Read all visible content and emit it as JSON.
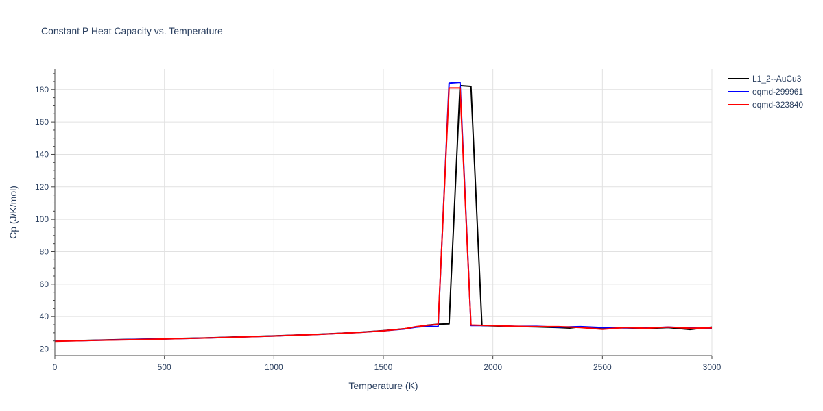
{
  "chart_data": {
    "type": "line",
    "title": "Constant P Heat Capacity vs. Temperature",
    "xlabel": "Temperature (K)",
    "ylabel": "Cp (J/K/mol)",
    "xlim": [
      0,
      3000
    ],
    "ylim": [
      16,
      193
    ],
    "xticks": [
      0,
      500,
      1000,
      1500,
      2000,
      2500,
      3000
    ],
    "xtick_labels": [
      "0",
      "500",
      "1000",
      "1500",
      "2000",
      "2500",
      "3000"
    ],
    "yticks": [
      20,
      40,
      60,
      80,
      100,
      120,
      140,
      160,
      180
    ],
    "ytick_labels": [
      "20",
      "40",
      "60",
      "80",
      "100",
      "120",
      "140",
      "160",
      "180"
    ],
    "grid": true,
    "legend_position": "top-right",
    "series": [
      {
        "name": "L1_2--AuCu3",
        "color": "#000000",
        "x": [
          0,
          100,
          200,
          300,
          400,
          500,
          600,
          700,
          800,
          900,
          1000,
          1100,
          1200,
          1300,
          1400,
          1500,
          1600,
          1650,
          1700,
          1750,
          1800,
          1850,
          1900,
          1950,
          2000,
          2100,
          2200,
          2300,
          2350,
          2400,
          2500,
          2600,
          2700,
          2800,
          2900,
          3000
        ],
        "y": [
          25.0,
          25.2,
          25.5,
          25.8,
          26.0,
          26.3,
          26.6,
          26.9,
          27.3,
          27.7,
          28.1,
          28.6,
          29.1,
          29.7,
          30.4,
          31.3,
          32.5,
          33.6,
          34.7,
          35.3,
          35.5,
          182.5,
          182.0,
          34.5,
          34.3,
          33.9,
          33.6,
          33.2,
          32.9,
          33.6,
          33.0,
          33.1,
          32.6,
          33.2,
          32.0,
          33.5
        ]
      },
      {
        "name": "oqmd-299961",
        "color": "#0000ff",
        "x": [
          0,
          100,
          200,
          300,
          400,
          500,
          600,
          700,
          800,
          900,
          1000,
          1100,
          1200,
          1300,
          1400,
          1500,
          1600,
          1650,
          1700,
          1750,
          1800,
          1850,
          1900,
          2000,
          2100,
          2200,
          2300,
          2400,
          2500,
          2600,
          2700,
          2800,
          2900,
          3000
        ],
        "y": [
          24.9,
          25.1,
          25.4,
          25.7,
          26.0,
          26.2,
          26.5,
          26.8,
          27.2,
          27.6,
          28.0,
          28.5,
          29.0,
          29.6,
          30.3,
          31.2,
          32.4,
          33.5,
          34.0,
          33.8,
          184.0,
          184.5,
          34.5,
          34.5,
          34.0,
          34.0,
          33.5,
          33.8,
          33.2,
          33.0,
          33.0,
          33.5,
          33.0,
          32.5
        ]
      },
      {
        "name": "oqmd-323840",
        "color": "#ff0000",
        "x": [
          0,
          100,
          200,
          300,
          400,
          500,
          600,
          700,
          800,
          900,
          1000,
          1100,
          1200,
          1300,
          1400,
          1500,
          1600,
          1650,
          1700,
          1750,
          1800,
          1850,
          1900,
          2000,
          2100,
          2200,
          2300,
          2400,
          2500,
          2600,
          2700,
          2800,
          2900,
          3000
        ],
        "y": [
          24.8,
          25.1,
          25.4,
          25.6,
          25.9,
          26.2,
          26.5,
          26.8,
          27.2,
          27.6,
          28.0,
          28.5,
          29.0,
          29.6,
          30.3,
          31.2,
          32.5,
          33.8,
          34.6,
          35.2,
          181.0,
          181.0,
          34.8,
          34.4,
          34.0,
          33.8,
          33.8,
          33.2,
          32.2,
          33.2,
          32.8,
          33.5,
          32.8,
          33.0
        ]
      }
    ]
  }
}
